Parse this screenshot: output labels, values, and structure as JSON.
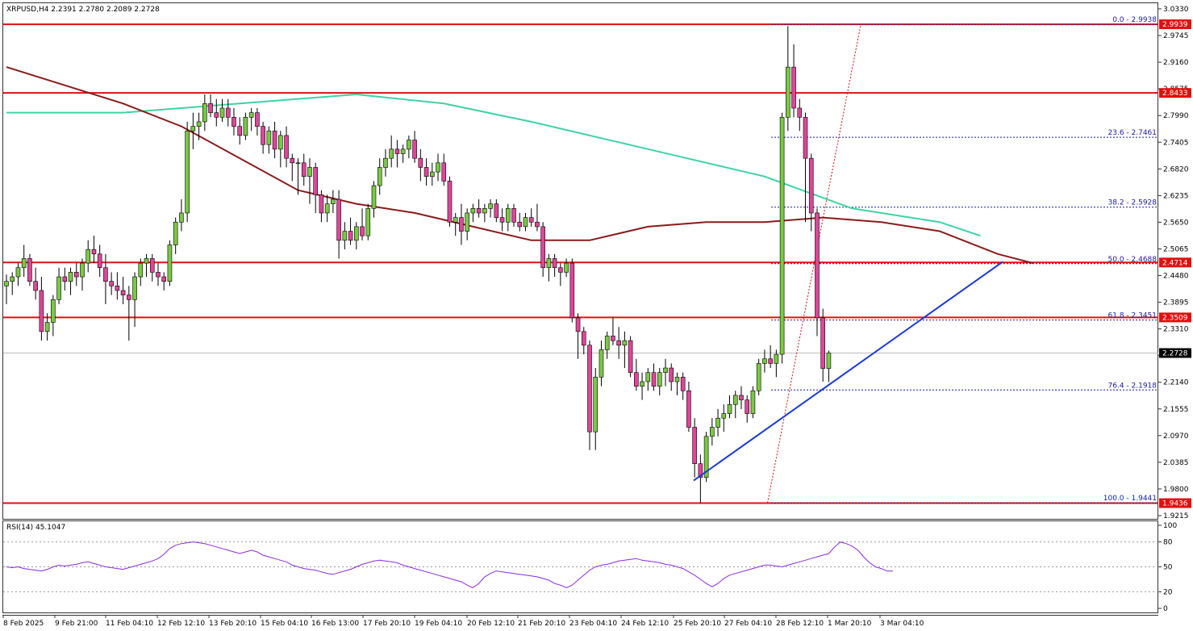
{
  "chart_data": {
    "type": "candlestick",
    "symbol_header": "XRPUSD,H4  2.2391 2.2780 2.2089 2.2728",
    "price_ticks": [
      "3.0330",
      "2.9745",
      "2.9160",
      "2.8575",
      "2.7990",
      "2.7405",
      "2.6820",
      "2.6235",
      "2.5650",
      "2.5065",
      "2.4480",
      "2.3895",
      "2.3310",
      "2.2725",
      "2.2140",
      "2.1555",
      "2.0970",
      "2.0385",
      "1.9800",
      "1.9215"
    ],
    "time_ticks": [
      "8 Feb 2025",
      "9 Feb 21:00",
      "11 Feb 04:10",
      "12 Feb 12:10",
      "13 Feb 20:10",
      "15 Feb 04:10",
      "16 Feb 13:00",
      "17 Feb 20:10",
      "19 Feb 04:10",
      "20 Feb 12:10",
      "21 Feb 20:10",
      "23 Feb 04:10",
      "24 Feb 12:10",
      "25 Feb 20:10",
      "27 Feb 04:10",
      "28 Feb 12:10",
      "1 Mar 20:10",
      "3 Mar 04:10"
    ],
    "y_range": [
      1.9215,
      3.033
    ],
    "horizontal_levels": [
      {
        "label": "2.9939",
        "value": 2.9939,
        "color": "#e01010"
      },
      {
        "label": "2.8433",
        "value": 2.8433,
        "color": "#e01010"
      },
      {
        "label": "2.4714",
        "value": 2.4714,
        "color": "#e01010"
      },
      {
        "label": "2.3509",
        "value": 2.3509,
        "color": "#e01010"
      },
      {
        "label": "1.9436",
        "value": 1.9436,
        "color": "#e01010"
      }
    ],
    "current_price": {
      "label": "2.2728",
      "value": 2.2728
    },
    "fibonacci": [
      {
        "label": "0.0 - 2.9938",
        "value": 2.9938
      },
      {
        "label": "23.6 - 2.7461",
        "value": 2.7461
      },
      {
        "label": "38.2 - 2.5928",
        "value": 2.5928
      },
      {
        "label": "50.0 - 2.4688",
        "value": 2.4688
      },
      {
        "label": "61.8 - 2.3451",
        "value": 2.3451
      },
      {
        "label": "76.4 - 2.1918",
        "value": 2.1918
      },
      {
        "label": "100.0 - 1.9441",
        "value": 1.9441
      }
    ],
    "candles": [
      [
        2.42,
        2.445,
        2.38,
        2.43
      ],
      [
        2.43,
        2.45,
        2.4,
        2.44
      ],
      [
        2.44,
        2.47,
        2.42,
        2.46
      ],
      [
        2.46,
        2.51,
        2.44,
        2.48
      ],
      [
        2.48,
        2.49,
        2.42,
        2.43
      ],
      [
        2.43,
        2.46,
        2.39,
        2.41
      ],
      [
        2.41,
        2.44,
        2.3,
        2.32
      ],
      [
        2.32,
        2.36,
        2.3,
        2.34
      ],
      [
        2.34,
        2.4,
        2.31,
        2.39
      ],
      [
        2.39,
        2.46,
        2.38,
        2.44
      ],
      [
        2.44,
        2.46,
        2.41,
        2.43
      ],
      [
        2.43,
        2.46,
        2.4,
        2.45
      ],
      [
        2.45,
        2.47,
        2.42,
        2.44
      ],
      [
        2.44,
        2.48,
        2.41,
        2.47
      ],
      [
        2.47,
        2.52,
        2.45,
        2.5
      ],
      [
        2.5,
        2.53,
        2.47,
        2.49
      ],
      [
        2.49,
        2.51,
        2.44,
        2.46
      ],
      [
        2.46,
        2.49,
        2.38,
        2.43
      ],
      [
        2.43,
        2.45,
        2.4,
        2.42
      ],
      [
        2.42,
        2.45,
        2.39,
        2.41
      ],
      [
        2.41,
        2.44,
        2.38,
        2.4
      ],
      [
        2.4,
        2.42,
        2.3,
        2.39
      ],
      [
        2.39,
        2.45,
        2.33,
        2.44
      ],
      [
        2.44,
        2.48,
        2.42,
        2.47
      ],
      [
        2.47,
        2.49,
        2.44,
        2.48
      ],
      [
        2.48,
        2.49,
        2.43,
        2.45
      ],
      [
        2.45,
        2.47,
        2.42,
        2.44
      ],
      [
        2.44,
        2.45,
        2.41,
        2.43
      ],
      [
        2.43,
        2.52,
        2.42,
        2.51
      ],
      [
        2.51,
        2.57,
        2.49,
        2.56
      ],
      [
        2.56,
        2.61,
        2.54,
        2.58
      ],
      [
        2.58,
        2.78,
        2.56,
        2.76
      ],
      [
        2.76,
        2.8,
        2.72,
        2.77
      ],
      [
        2.77,
        2.8,
        2.74,
        2.78
      ],
      [
        2.78,
        2.84,
        2.76,
        2.82
      ],
      [
        2.82,
        2.84,
        2.79,
        2.8
      ],
      [
        2.8,
        2.83,
        2.77,
        2.79
      ],
      [
        2.79,
        2.83,
        2.78,
        2.81
      ],
      [
        2.81,
        2.83,
        2.77,
        2.79
      ],
      [
        2.79,
        2.81,
        2.75,
        2.77
      ],
      [
        2.77,
        2.79,
        2.73,
        2.75
      ],
      [
        2.75,
        2.8,
        2.74,
        2.79
      ],
      [
        2.79,
        2.81,
        2.76,
        2.8
      ],
      [
        2.8,
        2.81,
        2.75,
        2.77
      ],
      [
        2.77,
        2.78,
        2.71,
        2.73
      ],
      [
        2.73,
        2.77,
        2.71,
        2.76
      ],
      [
        2.76,
        2.78,
        2.7,
        2.72
      ],
      [
        2.72,
        2.76,
        2.68,
        2.75
      ],
      [
        2.75,
        2.77,
        2.68,
        2.7
      ],
      [
        2.7,
        2.71,
        2.65,
        2.69
      ],
      [
        2.69,
        2.7,
        2.62,
        2.69
      ],
      [
        2.69,
        2.71,
        2.64,
        2.66
      ],
      [
        2.66,
        2.7,
        2.6,
        2.68
      ],
      [
        2.68,
        2.69,
        2.58,
        2.62
      ],
      [
        2.62,
        2.63,
        2.56,
        2.58
      ],
      [
        2.58,
        2.62,
        2.56,
        2.6
      ],
      [
        2.6,
        2.63,
        2.58,
        2.61
      ],
      [
        2.61,
        2.63,
        2.48,
        2.52
      ],
      [
        2.52,
        2.56,
        2.5,
        2.54
      ],
      [
        2.54,
        2.57,
        2.51,
        2.52
      ],
      [
        2.52,
        2.56,
        2.5,
        2.55
      ],
      [
        2.55,
        2.59,
        2.52,
        2.53
      ],
      [
        2.53,
        2.6,
        2.52,
        2.59
      ],
      [
        2.59,
        2.65,
        2.57,
        2.64
      ],
      [
        2.64,
        2.7,
        2.62,
        2.68
      ],
      [
        2.68,
        2.72,
        2.66,
        2.7
      ],
      [
        2.7,
        2.75,
        2.68,
        2.72
      ],
      [
        2.72,
        2.74,
        2.68,
        2.71
      ],
      [
        2.71,
        2.73,
        2.69,
        2.72
      ],
      [
        2.72,
        2.75,
        2.7,
        2.74
      ],
      [
        2.74,
        2.76,
        2.69,
        2.7
      ],
      [
        2.7,
        2.72,
        2.65,
        2.68
      ],
      [
        2.68,
        2.7,
        2.64,
        2.66
      ],
      [
        2.66,
        2.69,
        2.64,
        2.67
      ],
      [
        2.67,
        2.71,
        2.65,
        2.69
      ],
      [
        2.69,
        2.71,
        2.64,
        2.65
      ],
      [
        2.65,
        2.66,
        2.55,
        2.56
      ],
      [
        2.56,
        2.58,
        2.53,
        2.57
      ],
      [
        2.57,
        2.6,
        2.51,
        2.54
      ],
      [
        2.54,
        2.59,
        2.52,
        2.58
      ],
      [
        2.58,
        2.6,
        2.56,
        2.59
      ],
      [
        2.59,
        2.61,
        2.57,
        2.58
      ],
      [
        2.58,
        2.6,
        2.56,
        2.59
      ],
      [
        2.59,
        2.61,
        2.57,
        2.6
      ],
      [
        2.6,
        2.61,
        2.56,
        2.57
      ],
      [
        2.57,
        2.59,
        2.54,
        2.56
      ],
      [
        2.56,
        2.6,
        2.54,
        2.59
      ],
      [
        2.59,
        2.6,
        2.55,
        2.56
      ],
      [
        2.56,
        2.58,
        2.54,
        2.55
      ],
      [
        2.55,
        2.58,
        2.54,
        2.57
      ],
      [
        2.57,
        2.59,
        2.55,
        2.56
      ],
      [
        2.56,
        2.6,
        2.54,
        2.55
      ],
      [
        2.55,
        2.56,
        2.44,
        2.46
      ],
      [
        2.46,
        2.49,
        2.43,
        2.48
      ],
      [
        2.48,
        2.49,
        2.44,
        2.46
      ],
      [
        2.46,
        2.47,
        2.42,
        2.45
      ],
      [
        2.45,
        2.48,
        2.44,
        2.47
      ],
      [
        2.47,
        2.48,
        2.34,
        2.35
      ],
      [
        2.35,
        2.36,
        2.26,
        2.32
      ],
      [
        2.32,
        2.33,
        2.27,
        2.29
      ],
      [
        2.29,
        2.3,
        2.06,
        2.1
      ],
      [
        2.1,
        2.24,
        2.06,
        2.22
      ],
      [
        2.22,
        2.3,
        2.2,
        2.28
      ],
      [
        2.28,
        2.32,
        2.26,
        2.31
      ],
      [
        2.31,
        2.35,
        2.29,
        2.3
      ],
      [
        2.3,
        2.33,
        2.26,
        2.29
      ],
      [
        2.29,
        2.32,
        2.24,
        2.3
      ],
      [
        2.3,
        2.31,
        2.22,
        2.23
      ],
      [
        2.23,
        2.26,
        2.19,
        2.2
      ],
      [
        2.2,
        2.23,
        2.17,
        2.21
      ],
      [
        2.21,
        2.24,
        2.19,
        2.23
      ],
      [
        2.23,
        2.25,
        2.19,
        2.2
      ],
      [
        2.2,
        2.24,
        2.18,
        2.23
      ],
      [
        2.23,
        2.26,
        2.2,
        2.24
      ],
      [
        2.24,
        2.25,
        2.19,
        2.21
      ],
      [
        2.21,
        2.23,
        2.18,
        2.22
      ],
      [
        2.22,
        2.23,
        2.17,
        2.19
      ],
      [
        2.19,
        2.21,
        2.1,
        2.11
      ],
      [
        2.11,
        2.13,
        2.0,
        2.03
      ],
      [
        2.03,
        2.05,
        1.944,
        2.0
      ],
      [
        2.0,
        2.1,
        1.99,
        2.09
      ],
      [
        2.09,
        2.13,
        2.07,
        2.11
      ],
      [
        2.11,
        2.15,
        2.09,
        2.13
      ],
      [
        2.13,
        2.16,
        2.1,
        2.14
      ],
      [
        2.14,
        2.18,
        2.13,
        2.16
      ],
      [
        2.16,
        2.19,
        2.13,
        2.18
      ],
      [
        2.18,
        2.2,
        2.15,
        2.17
      ],
      [
        2.17,
        2.18,
        2.12,
        2.14
      ],
      [
        2.14,
        2.2,
        2.13,
        2.19
      ],
      [
        2.19,
        2.26,
        2.18,
        2.25
      ],
      [
        2.25,
        2.28,
        2.23,
        2.26
      ],
      [
        2.26,
        2.29,
        2.24,
        2.25
      ],
      [
        2.25,
        2.28,
        2.22,
        2.27
      ],
      [
        2.27,
        2.8,
        2.25,
        2.79
      ],
      [
        2.79,
        2.99,
        2.76,
        2.9
      ],
      [
        2.9,
        2.95,
        2.79,
        2.81
      ],
      [
        2.81,
        2.83,
        2.76,
        2.79
      ],
      [
        2.79,
        2.8,
        2.56,
        2.7
      ],
      [
        2.7,
        2.71,
        2.54,
        2.58
      ],
      [
        2.58,
        2.59,
        2.31,
        2.35
      ],
      [
        2.35,
        2.37,
        2.21,
        2.239
      ],
      [
        2.239,
        2.278,
        2.209,
        2.273
      ]
    ],
    "ma_fast_color": "#8b1a1a",
    "ma_slow_color": "#3dd4a0",
    "ma_fast": [
      [
        0,
        2.9
      ],
      [
        10,
        2.86
      ],
      [
        20,
        2.82
      ],
      [
        30,
        2.77
      ],
      [
        40,
        2.7
      ],
      [
        50,
        2.63
      ],
      [
        60,
        2.6
      ],
      [
        70,
        2.58
      ],
      [
        80,
        2.55
      ],
      [
        90,
        2.52
      ],
      [
        100,
        2.52
      ],
      [
        110,
        2.55
      ],
      [
        120,
        2.56
      ],
      [
        130,
        2.56
      ],
      [
        140,
        2.57
      ],
      [
        150,
        2.56
      ],
      [
        160,
        2.54
      ],
      [
        170,
        2.49
      ],
      [
        176,
        2.47
      ]
    ],
    "ma_slow": [
      [
        0,
        2.8
      ],
      [
        20,
        2.8
      ],
      [
        40,
        2.82
      ],
      [
        60,
        2.84
      ],
      [
        75,
        2.82
      ],
      [
        90,
        2.78
      ],
      [
        110,
        2.72
      ],
      [
        130,
        2.66
      ],
      [
        145,
        2.59
      ],
      [
        160,
        2.56
      ],
      [
        167,
        2.53
      ]
    ],
    "trendline": {
      "from": [
        2,
        1.993
      ],
      "to": [
        55,
        2.473
      ],
      "index_base": 117,
      "color": "#1a3ad4"
    },
    "rsi": {
      "label": "RSI(14) 45.1047",
      "levels": [
        "100",
        "80",
        "50",
        "20",
        "0"
      ],
      "values": [
        50,
        49,
        50,
        48,
        47,
        46,
        45,
        47,
        50,
        52,
        51,
        52,
        53,
        55,
        56,
        54,
        52,
        50,
        49,
        48,
        47,
        49,
        51,
        53,
        55,
        57,
        60,
        65,
        72,
        76,
        78,
        79,
        80,
        79,
        78,
        76,
        74,
        72,
        70,
        68,
        66,
        68,
        70,
        68,
        64,
        62,
        60,
        58,
        56,
        52,
        50,
        48,
        47,
        46,
        44,
        42,
        41,
        43,
        45,
        47,
        50,
        53,
        55,
        57,
        58,
        57,
        56,
        55,
        52,
        50,
        48,
        46,
        44,
        42,
        40,
        38,
        36,
        34,
        32,
        28,
        25,
        30,
        38,
        42,
        45,
        44,
        43,
        42,
        41,
        40,
        39,
        38,
        36,
        34,
        30,
        28,
        25,
        28,
        34,
        40,
        46,
        50,
        52,
        53,
        55,
        57,
        58,
        59,
        60,
        58,
        57,
        56,
        55,
        53,
        52,
        50,
        48,
        44,
        40,
        35,
        30,
        26,
        30,
        36,
        40,
        42,
        44,
        46,
        48,
        50,
        52,
        52,
        51,
        50,
        52,
        54,
        56,
        58,
        60,
        62,
        64,
        66,
        74,
        80,
        78,
        75,
        70,
        62,
        55,
        50,
        48,
        45,
        45
      ]
    }
  }
}
